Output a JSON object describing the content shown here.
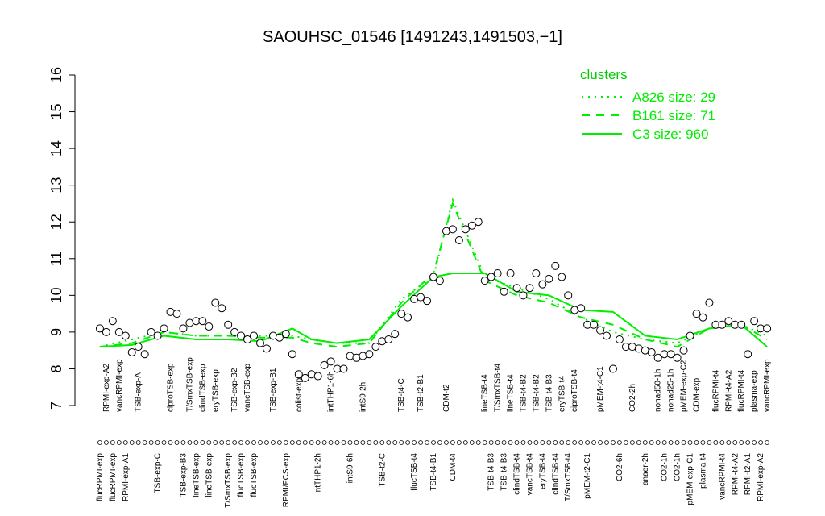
{
  "chart_data": {
    "type": "line",
    "title": "SAOUHSC_01546 [1491243,1491503,−1]",
    "ylim": [
      7,
      16
    ],
    "yticks": [
      7,
      8,
      9,
      10,
      11,
      12,
      13,
      14,
      15,
      16
    ],
    "xlim": [
      -2,
      106
    ],
    "categories": [
      "flucRPMI-exp",
      "RPMI-exp-A2",
      "flucRPMI-exp",
      "vancRPMI-exp",
      "RPMI-exp-A1",
      null,
      "TSB-exp-A",
      null,
      null,
      "TSB-exp-C",
      null,
      "ciproTSB-exp",
      null,
      "TSB-exp-B3",
      "T/SmxTSB-exp",
      "lineTSB-exp",
      "clindTSB-exp",
      "lineTSB-exp",
      "eryTSB-exp",
      null,
      "T/SmxTSB-exp",
      "TSB-exp-B2",
      "flucTSB-exp",
      "vancTSB-exp",
      "flucTSB-exp",
      null,
      null,
      "TSB-exp-B1",
      null,
      "RPMI/FCS-exp",
      null,
      "colist-exp",
      null,
      null,
      "intTHP1-2h",
      null,
      "intTHP1-6h",
      null,
      null,
      "intS9-6h",
      null,
      "intS9-2h",
      null,
      null,
      "TSB-t2-C",
      null,
      null,
      "TSB-t4-C",
      null,
      "flucTSB-t4",
      "TSB-t2-B1",
      null,
      "TSB-t4-B1",
      null,
      "CDM-t2",
      "CDM-t4",
      null,
      null,
      null,
      null,
      "lineTSB-t4",
      "TSB-t4-B3",
      "T/SmxTSB-t4",
      "TSB-t4-B3",
      "lineTSB-t4",
      "clindTSB-t4",
      "TSB-t4-B2",
      "vancTSB-t4",
      "TSB-t4-B2",
      "eryTSB-t4",
      "TSB-t4-B3",
      "clindTSB-t4",
      "eryTSB-t4",
      "T/SmxTSB-t4",
      "ciproTSB-t4",
      null,
      "pMEM-t2-C1",
      null,
      "pMEM-t4-C1",
      null,
      null,
      "CO2-6h",
      null,
      "CO2-2h",
      null,
      "anaer-2h",
      null,
      "nonad50-1h",
      "CO2-1h",
      "nonad25-1h",
      "CO2-1h",
      "pMEM-exp-C2",
      "pMEM-exp-C1",
      "CDM-exp",
      "plasma-t4",
      null,
      "flucRPMI-t4",
      "vancRPMI-t4",
      "RPMI-t4-A2",
      "RPMI-t4-A2",
      "flucRPMI-t4",
      "RPMI-t2-A1",
      "plasma-exp",
      "RPMI-exp-A2",
      "vancRPMI-exp"
    ],
    "values": [
      9.1,
      9.0,
      9.3,
      9.0,
      8.9,
      8.45,
      8.6,
      8.4,
      9.0,
      8.9,
      9.1,
      9.55,
      9.5,
      9.1,
      9.25,
      9.3,
      9.3,
      9.15,
      9.8,
      9.65,
      9.2,
      9.0,
      8.9,
      8.8,
      8.9,
      8.7,
      8.55,
      8.9,
      8.85,
      8.95,
      8.4,
      7.85,
      7.75,
      7.85,
      7.8,
      8.1,
      8.2,
      8.0,
      8.0,
      8.35,
      8.3,
      8.35,
      8.4,
      8.6,
      8.75,
      8.8,
      8.95,
      9.5,
      9.4,
      9.9,
      9.95,
      9.85,
      10.5,
      10.4,
      11.75,
      11.8,
      11.5,
      11.8,
      11.9,
      12.0,
      10.4,
      10.5,
      10.6,
      10.1,
      10.6,
      10.2,
      10.0,
      10.2,
      10.6,
      10.3,
      10.45,
      10.8,
      10.5,
      10.0,
      9.6,
      9.65,
      9.2,
      9.2,
      9.05,
      8.9,
      8.0,
      8.8,
      8.6,
      8.6,
      8.55,
      8.5,
      8.45,
      8.3,
      8.4,
      8.4,
      8.3,
      8.5,
      8.9,
      9.5,
      9.4,
      9.8,
      9.2,
      9.2,
      9.3,
      9.2,
      9.2,
      8.4,
      9.3,
      9.1,
      9.1
    ],
    "legend_title": "clusters",
    "legend_position": "top-right",
    "series": [
      {
        "name": "A826 size: 29",
        "color": "#00ee00",
        "dash": "dotted",
        "x": [
          0,
          5,
          10,
          15,
          20,
          25,
          30,
          33,
          37,
          42,
          47,
          52,
          55,
          60,
          65,
          70,
          75,
          80,
          85,
          90,
          95,
          100,
          104
        ],
        "values": [
          8.6,
          8.8,
          9.0,
          8.9,
          8.9,
          8.9,
          8.9,
          8.8,
          8.7,
          8.7,
          9.9,
          10.5,
          12.6,
          10.5,
          10.2,
          9.9,
          9.4,
          9.0,
          8.8,
          8.7,
          9.1,
          9.2,
          8.9
        ]
      },
      {
        "name": "B161 size: 71",
        "color": "#00ee00",
        "dash": "dashed",
        "x": [
          0,
          5,
          10,
          15,
          20,
          25,
          30,
          33,
          37,
          42,
          47,
          52,
          55,
          60,
          65,
          70,
          75,
          80,
          85,
          90,
          95,
          100,
          104
        ],
        "values": [
          8.6,
          8.7,
          9.0,
          8.9,
          8.9,
          8.85,
          8.85,
          8.7,
          8.6,
          8.7,
          9.8,
          10.6,
          12.5,
          10.4,
          10.0,
          9.8,
          9.4,
          9.2,
          8.8,
          8.6,
          9.1,
          9.2,
          8.8
        ]
      },
      {
        "name": "C3 size: 960",
        "color": "#00ee00",
        "dash": "solid",
        "x": [
          0,
          5,
          10,
          15,
          20,
          25,
          30,
          33,
          37,
          42,
          47,
          52,
          55,
          60,
          65,
          70,
          75,
          80,
          85,
          90,
          95,
          100,
          104
        ],
        "values": [
          8.6,
          8.65,
          8.9,
          8.8,
          8.8,
          8.75,
          9.1,
          8.8,
          8.7,
          8.8,
          9.7,
          10.5,
          10.6,
          10.6,
          10.1,
          10.0,
          9.6,
          9.55,
          8.9,
          8.8,
          9.1,
          9.2,
          8.6
        ]
      }
    ]
  }
}
